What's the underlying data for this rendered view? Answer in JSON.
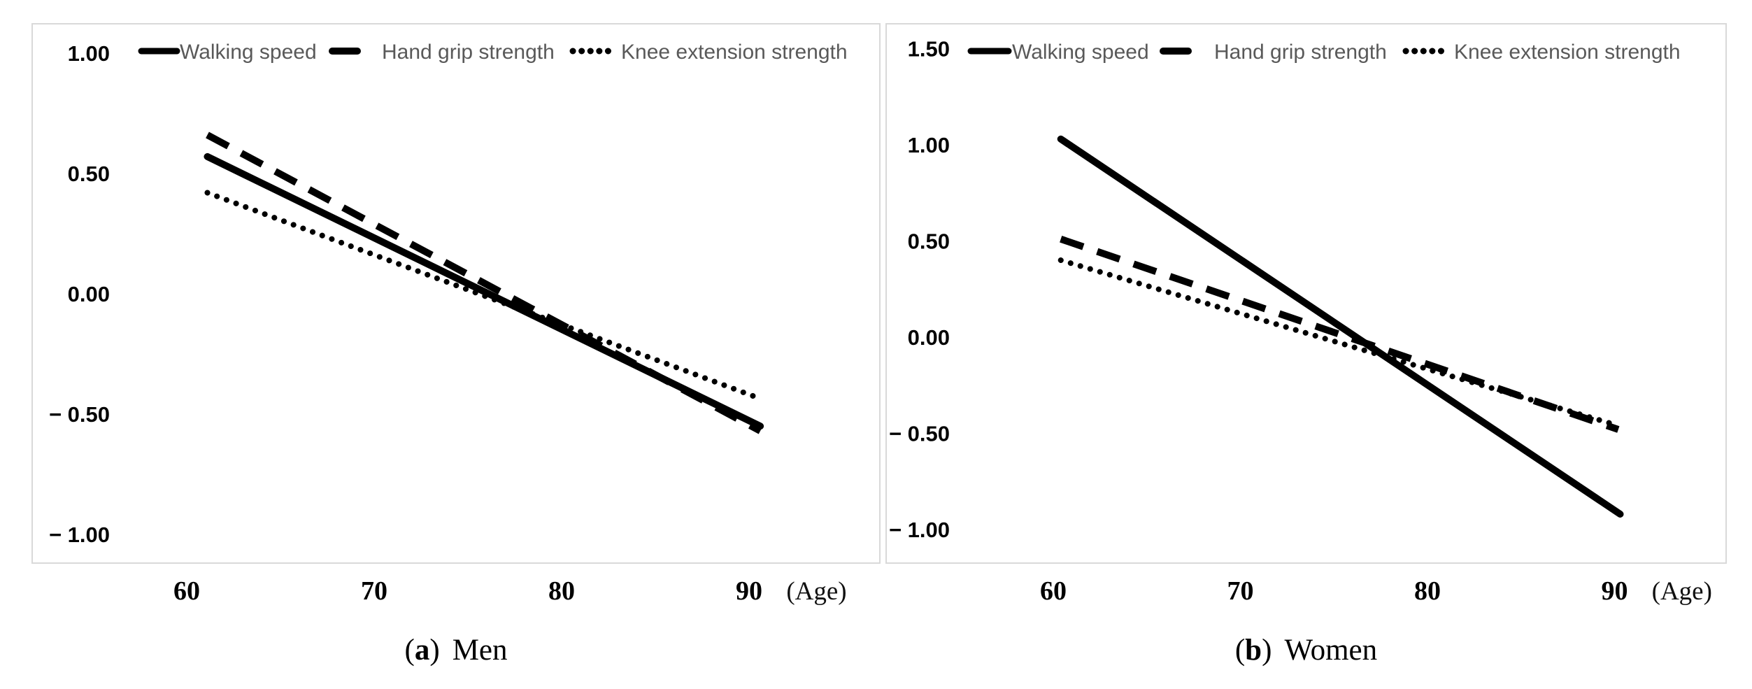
{
  "figure": {
    "age_axis_suffix": "(Age)"
  },
  "chart_data": [
    {
      "type": "line",
      "panel": "a",
      "caption": {
        "letter": "a",
        "label": "Men"
      },
      "legend": [
        "Walking speed",
        "Hand grip strength",
        "Knee extension strength"
      ],
      "legend_position": "top",
      "grid": false,
      "xlabel": "(Age)",
      "ylabel": "",
      "xlim": [
        56,
        94
      ],
      "ylim": [
        -1.25,
        1.15
      ],
      "x_ticks": [
        {
          "label": "60",
          "age": 60
        },
        {
          "label": "70",
          "age": 70
        },
        {
          "label": "80",
          "age": 80
        },
        {
          "label": "90",
          "age": 90
        }
      ],
      "x_unit_label": "(Age)",
      "x_unit_age": 93.6,
      "y_ticks": [
        {
          "label": "1.00",
          "value": 1.0
        },
        {
          "label": "0.50",
          "value": 0.5
        },
        {
          "label": "0.00",
          "value": 0.0
        },
        {
          "label": "− 0.50",
          "value": -0.5
        },
        {
          "label": "− 1.00",
          "value": -1.0
        }
      ],
      "series": [
        {
          "name": "Walking speed",
          "style": "solid",
          "x": [
            61.1,
            90.6
          ],
          "values": [
            0.57,
            -0.55
          ]
        },
        {
          "name": "Hand grip strength",
          "style": "dashed",
          "x": [
            61.1,
            90.6
          ],
          "values": [
            0.66,
            -0.57
          ]
        },
        {
          "name": "Knee extension strength",
          "style": "dotted",
          "x": [
            61.1,
            90.4
          ],
          "values": [
            0.42,
            -0.43
          ]
        }
      ]
    },
    {
      "type": "line",
      "panel": "b",
      "caption": {
        "letter": "b",
        "label": "Women"
      },
      "legend": [
        "Walking speed",
        "Hand grip strength",
        "Knee extension strength"
      ],
      "legend_position": "top",
      "grid": false,
      "xlabel": "(Age)",
      "ylabel": "",
      "xlim": [
        56,
        94
      ],
      "ylim": [
        -1.35,
        1.65
      ],
      "x_ticks": [
        {
          "label": "60",
          "age": 60
        },
        {
          "label": "70",
          "age": 70
        },
        {
          "label": "80",
          "age": 80
        },
        {
          "label": "90",
          "age": 90
        }
      ],
      "x_unit_label": "(Age)",
      "x_unit_age": 93.6,
      "y_ticks": [
        {
          "label": "1.50",
          "value": 1.5
        },
        {
          "label": "1.00",
          "value": 1.0
        },
        {
          "label": "0.50",
          "value": 0.5
        },
        {
          "label": "0.00",
          "value": 0.0
        },
        {
          "label": "− 0.50",
          "value": -0.5
        },
        {
          "label": "− 1.00",
          "value": -1.0
        }
      ],
      "series": [
        {
          "name": "Walking speed",
          "style": "solid",
          "x": [
            60.4,
            90.3
          ],
          "values": [
            1.03,
            -0.92
          ]
        },
        {
          "name": "Hand grip strength",
          "style": "dashed",
          "x": [
            60.4,
            90.2
          ],
          "values": [
            0.51,
            -0.48
          ]
        },
        {
          "name": "Knee extension strength",
          "style": "dotted",
          "x": [
            60.4,
            90.2
          ],
          "values": [
            0.4,
            -0.46
          ]
        }
      ]
    }
  ],
  "colors": {
    "line": "#000000",
    "legend_text": "#595959",
    "plot_border": "#d9d9d9",
    "background": "#ffffff"
  }
}
